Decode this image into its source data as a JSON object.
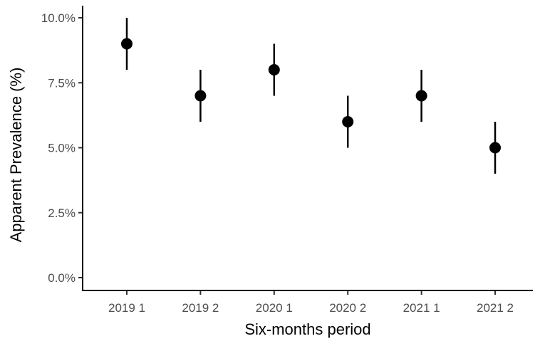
{
  "chart_data": {
    "type": "scatter",
    "xlabel": "Six-months period",
    "ylabel": "Apparent Prevalence (%)",
    "categories": [
      "2019 1",
      "2019 2",
      "2020 1",
      "2020 2",
      "2021 1",
      "2021 2"
    ],
    "values": [
      9,
      7,
      8,
      6,
      7,
      5
    ],
    "lower": [
      8,
      6,
      7,
      5,
      6,
      4
    ],
    "upper": [
      10,
      8,
      9,
      7,
      8,
      6
    ],
    "ylim": [
      0,
      10
    ],
    "yticks": [
      0,
      2.5,
      5,
      7.5,
      10
    ],
    "ytick_labels": [
      "0.0%",
      "2.5%",
      "5.0%",
      "7.5%",
      "10.0%"
    ],
    "grid": false,
    "point_color": "#000000",
    "errorbar_color": "#000000"
  }
}
